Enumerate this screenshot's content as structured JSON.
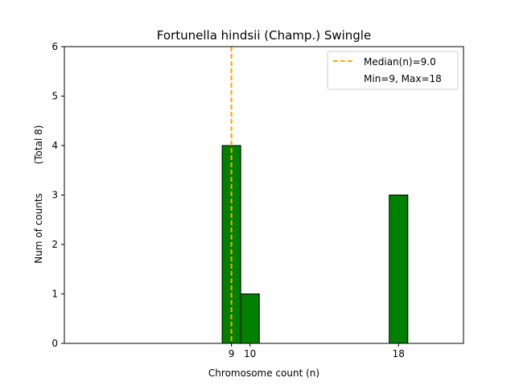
{
  "chart_data": {
    "type": "bar",
    "title": "Fortunella hindsii (Champ.) Swingle",
    "xlabel": "Chromosome count (n)",
    "ylabel": "Num of counts",
    "ylabel_note": "(Total 8)",
    "xlim": [
      0,
      21.5
    ],
    "ylim": [
      0,
      6
    ],
    "x_ticks": [
      9,
      10,
      18
    ],
    "y_ticks": [
      0,
      1,
      2,
      3,
      4,
      5,
      6
    ],
    "bins": [
      {
        "x": 9,
        "count": 4
      },
      {
        "x": 10,
        "count": 1
      },
      {
        "x": 18,
        "count": 3
      }
    ],
    "bin_width": 1,
    "bar_color": "#008000",
    "median": {
      "value": 9.0,
      "color": "#ffa500",
      "label": "Median(n)=9.0"
    },
    "legend": {
      "placement": "top-right",
      "entries": [
        "Median(n)=9.0",
        "Min=9, Max=18"
      ]
    }
  }
}
